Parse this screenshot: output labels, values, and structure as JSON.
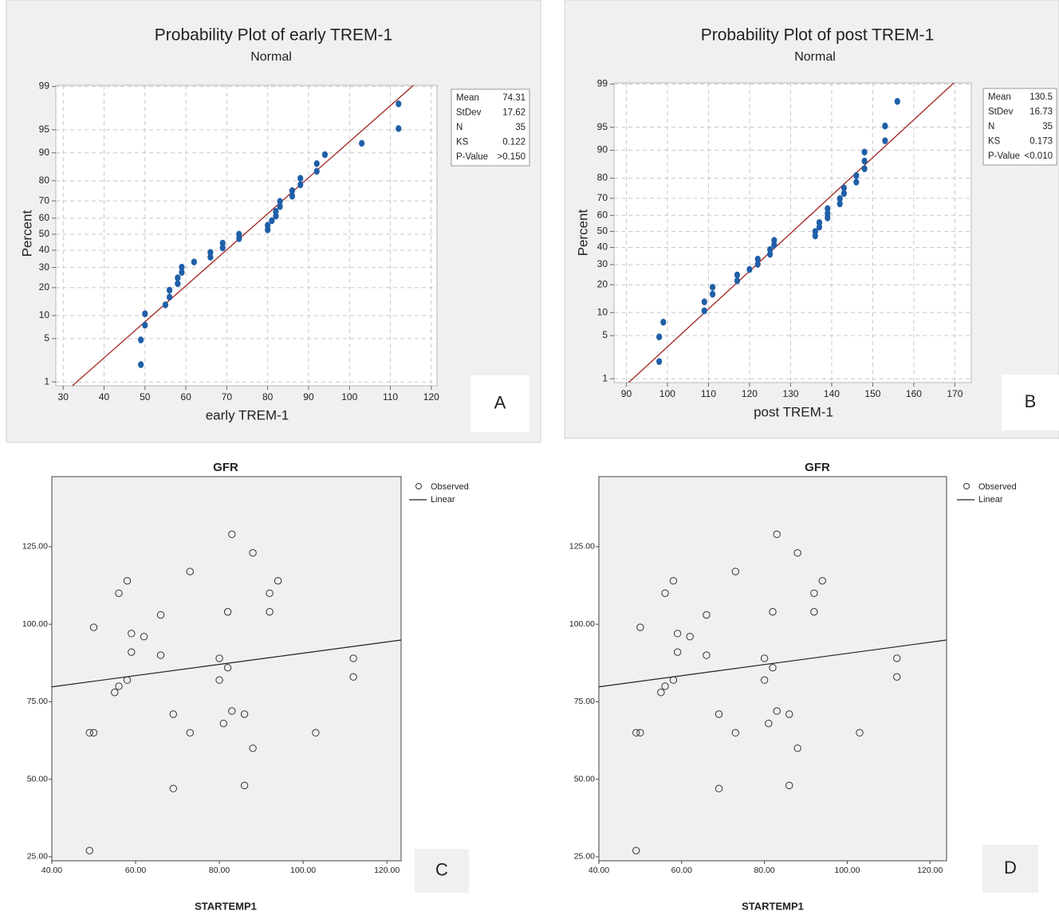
{
  "chart_data": [
    {
      "type": "probability",
      "title": "Probability Plot of early TREM-1",
      "subtitle": "Normal",
      "x_label": "early TREM-1",
      "y_label": "Percent",
      "panel_label": "A",
      "yscale": "normal",
      "grid": true,
      "xlim": [
        28.2,
        121.4
      ],
      "ylim": [
        0.85,
        99.05
      ],
      "xticks": [
        30,
        40,
        50,
        60,
        70,
        80,
        90,
        100,
        110,
        120
      ],
      "yticks": [
        1,
        5,
        10,
        20,
        30,
        40,
        50,
        60,
        70,
        80,
        90,
        95,
        99
      ],
      "series": [
        {
          "color": "#1f5fa8",
          "x": [
            49,
            49,
            50,
            50,
            55,
            56,
            56,
            58,
            58,
            59,
            59,
            62,
            66,
            66,
            69,
            69,
            73,
            73,
            80,
            80,
            81,
            82,
            82,
            83,
            83,
            86,
            86,
            88,
            88,
            92,
            92,
            94,
            103,
            112,
            112
          ],
          "values": [
            2.0,
            4.8,
            7.6,
            10.5,
            13.3,
            16.1,
            18.9,
            21.8,
            24.6,
            27.4,
            30.2,
            33.1,
            35.9,
            38.7,
            41.5,
            44.4,
            47.2,
            50.0,
            52.8,
            55.6,
            58.5,
            61.3,
            64.1,
            66.9,
            69.8,
            72.6,
            75.4,
            78.2,
            81.1,
            83.9,
            86.7,
            89.5,
            92.4,
            95.2,
            98.0
          ]
        }
      ],
      "fit_color": "#a0201e",
      "stats": {
        "labels": [
          "Mean",
          "StDev",
          "N",
          "KS",
          "P-Value"
        ],
        "values": [
          74.31,
          17.62,
          35,
          0.122,
          ">0.150"
        ]
      }
    },
    {
      "type": "probability",
      "title": "Probability Plot of post TREM-1",
      "subtitle": "Normal",
      "x_label": "post TREM-1",
      "y_label": "Percent",
      "panel_label": "B",
      "yscale": "normal",
      "grid": true,
      "xlim": [
        87,
        174
      ],
      "ylim": [
        0.85,
        99.05
      ],
      "xticks": [
        90,
        100,
        110,
        120,
        130,
        140,
        150,
        160,
        170
      ],
      "yticks": [
        1,
        5,
        10,
        20,
        30,
        40,
        50,
        60,
        70,
        80,
        90,
        95,
        99
      ],
      "series": [
        {
          "color": "#1f5fa8",
          "x": [
            98,
            98,
            99,
            109,
            109,
            111,
            111,
            117,
            117,
            120,
            122,
            122,
            125,
            125,
            126,
            126,
            136,
            136,
            137,
            137,
            139,
            139,
            139,
            142,
            142,
            143,
            143,
            146,
            146,
            148,
            148,
            148,
            153,
            153,
            156
          ],
          "values": [
            2.0,
            4.8,
            7.6,
            10.5,
            13.3,
            16.1,
            18.9,
            21.8,
            24.6,
            27.4,
            30.2,
            33.1,
            35.9,
            38.7,
            41.5,
            44.4,
            47.2,
            50.0,
            52.8,
            55.6,
            58.5,
            61.3,
            64.1,
            66.9,
            69.8,
            72.6,
            75.4,
            78.2,
            81.1,
            83.9,
            86.7,
            89.5,
            92.4,
            95.2,
            98.0
          ]
        }
      ],
      "fit_color": "#a0201e",
      "stats": {
        "labels": [
          "Mean",
          "StDev",
          "N",
          "KS",
          "P-Value"
        ],
        "values": [
          130.5,
          16.73,
          35,
          0.173,
          "<0.010"
        ]
      }
    },
    {
      "type": "scatter",
      "title": "GFR",
      "x_label": "STARTEMP1",
      "panel_label": "C",
      "xlim": [
        40,
        123.4
      ],
      "ylim": [
        23.7,
        147.6
      ],
      "xticks": [
        {
          "value": 40,
          "label": "40.00"
        },
        {
          "value": 60,
          "label": "60.00"
        },
        {
          "value": 80,
          "label": "80.00"
        },
        {
          "value": 100,
          "label": "100.00"
        },
        {
          "value": 120,
          "label": "120.00"
        }
      ],
      "yticks": [
        {
          "value": 25,
          "label": "25.00"
        },
        {
          "value": 50,
          "label": "50.00"
        },
        {
          "value": 75,
          "label": "75.00"
        },
        {
          "value": 100,
          "label": "100.00"
        },
        {
          "value": 125,
          "label": "125.00"
        }
      ],
      "series": [
        {
          "name": "Observed",
          "color": "#333333",
          "x": [
            49,
            49,
            50,
            50,
            55,
            56,
            56,
            58,
            58,
            59,
            59,
            62,
            66,
            66,
            69,
            69,
            73,
            73,
            80,
            80,
            81,
            82,
            82,
            83,
            83,
            86,
            86,
            88,
            88,
            92,
            92,
            94,
            103,
            112,
            112
          ],
          "values": [
            27,
            65,
            65,
            99,
            78,
            80,
            110,
            114,
            82,
            97,
            91,
            96,
            103,
            90,
            71,
            47,
            117,
            65,
            89,
            82,
            68,
            104,
            86,
            129,
            72,
            71,
            48,
            123,
            60,
            110,
            104,
            114,
            65,
            89,
            83
          ]
        },
        {
          "name": "Linear",
          "color": "#222222",
          "x": [
            40,
            123.4
          ],
          "values": [
            79.8,
            94.9
          ]
        }
      ]
    },
    {
      "type": "scatter",
      "title": "GFR",
      "x_label": "STARTEMP1",
      "panel_label": "D",
      "xlim": [
        40,
        124
      ],
      "ylim": [
        23.7,
        147.6
      ],
      "xticks": [
        {
          "value": 40,
          "label": "40.00"
        },
        {
          "value": 60,
          "label": "60.00"
        },
        {
          "value": 80,
          "label": "80.00"
        },
        {
          "value": 100,
          "label": "100.00"
        },
        {
          "value": 120,
          "label": "120.00"
        }
      ],
      "yticks": [
        {
          "value": 25,
          "label": "25.00"
        },
        {
          "value": 50,
          "label": "50.00"
        },
        {
          "value": 75,
          "label": "75.00"
        },
        {
          "value": 100,
          "label": "100.00"
        },
        {
          "value": 125,
          "label": "125.00"
        }
      ],
      "series": [
        {
          "name": "Observed",
          "color": "#333333",
          "x": [
            49,
            49,
            50,
            50,
            55,
            56,
            56,
            58,
            58,
            59,
            59,
            62,
            66,
            66,
            69,
            69,
            73,
            73,
            80,
            80,
            81,
            82,
            82,
            83,
            83,
            86,
            86,
            88,
            88,
            92,
            92,
            94,
            103,
            112,
            112
          ],
          "values": [
            27,
            65,
            65,
            99,
            78,
            80,
            110,
            114,
            82,
            97,
            91,
            96,
            103,
            90,
            71,
            47,
            117,
            65,
            89,
            82,
            68,
            104,
            86,
            129,
            72,
            71,
            48,
            123,
            60,
            110,
            104,
            114,
            65,
            89,
            83
          ]
        },
        {
          "name": "Linear",
          "color": "#222222",
          "x": [
            40,
            124
          ],
          "values": [
            79.8,
            94.9
          ]
        }
      ]
    }
  ]
}
